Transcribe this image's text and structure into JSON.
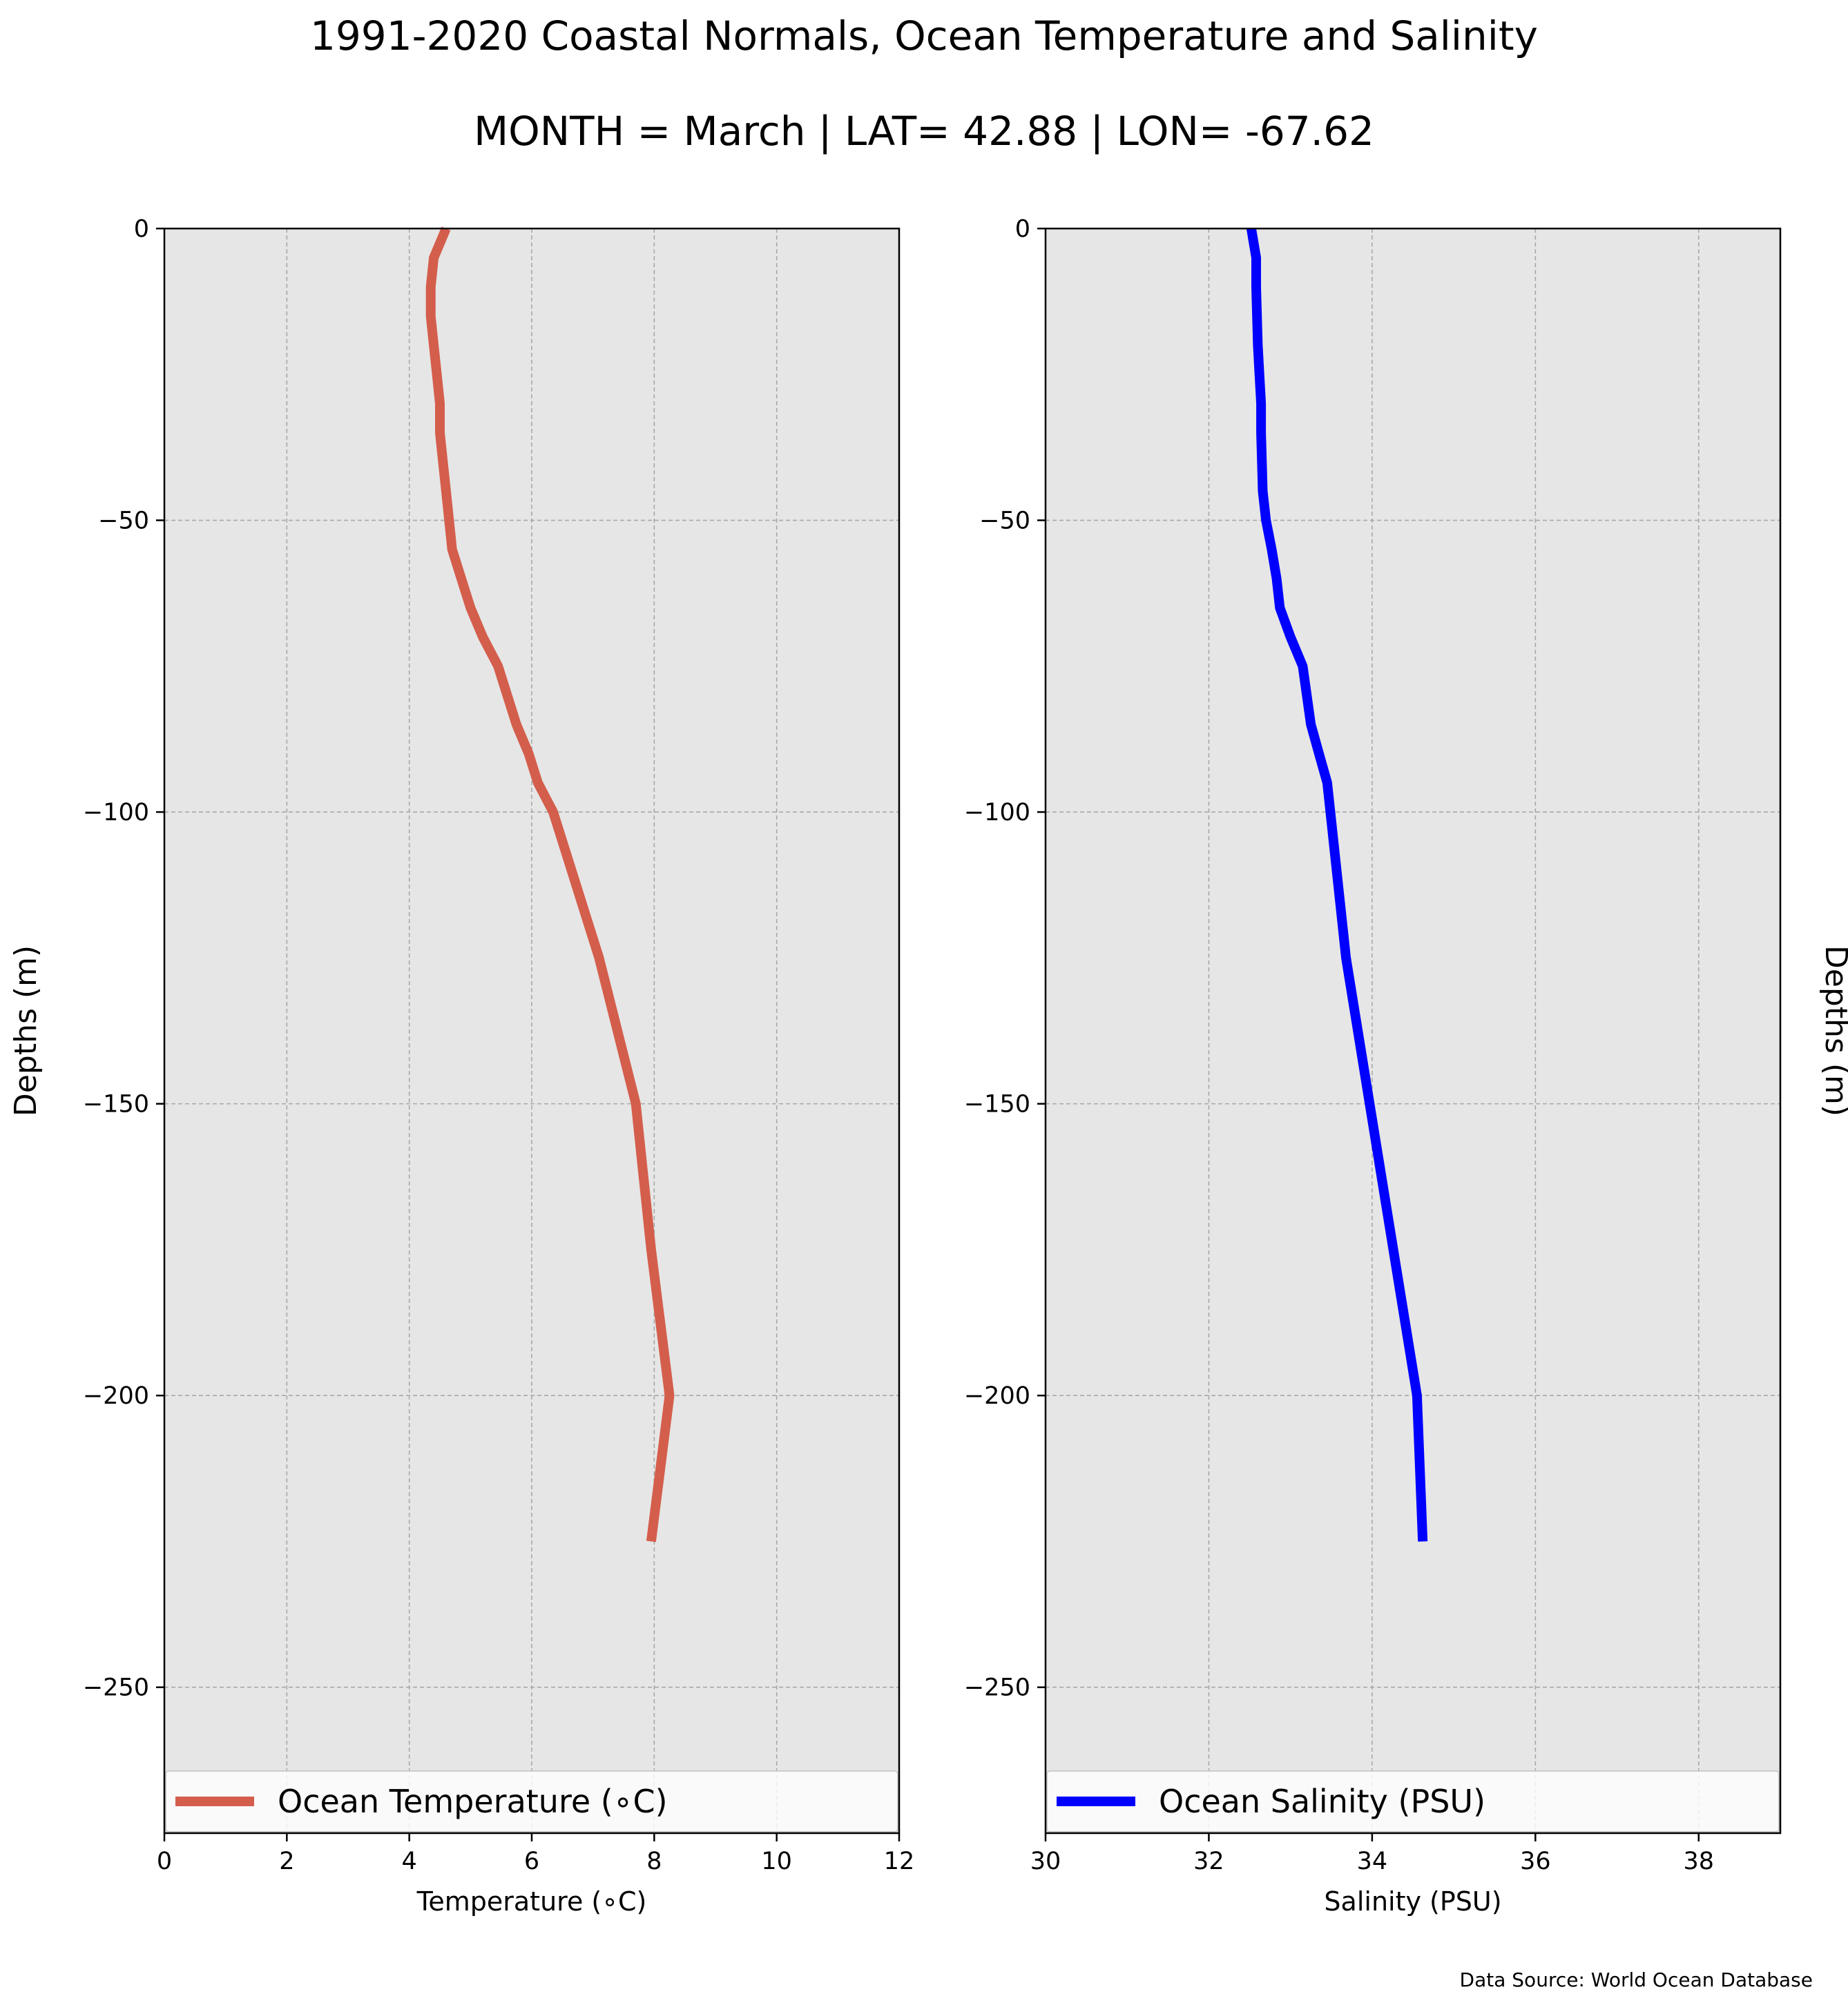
{
  "title": "1991-2020 Coastal Normals, Ocean Temperature and Salinity",
  "subtitle": "MONTH = March | LAT= 42.88 | LON= -67.62",
  "footer": "Data Source: World Ocean Database",
  "chart_data": [
    {
      "type": "line",
      "orientation": "profile",
      "xlabel": "Temperature (∘C)",
      "ylabel": "Depths (m)",
      "xlim": [
        0,
        12
      ],
      "ylim": [
        -275,
        0
      ],
      "xticks": [
        0,
        2,
        4,
        6,
        8,
        10,
        12
      ],
      "yticks": [
        0,
        -50,
        -100,
        -150,
        -200,
        -250
      ],
      "ytick_labels": [
        "0",
        "−50",
        "−100",
        "−150",
        "−200",
        "−250"
      ],
      "grid": true,
      "background": "#e6e6e6",
      "legend_position": "bottom",
      "series": [
        {
          "name": "Ocean Temperature (∘C)",
          "color": "#d45e4c",
          "x": [
            4.6,
            4.4,
            4.35,
            4.35,
            4.4,
            4.45,
            4.5,
            4.5,
            4.55,
            4.6,
            4.7,
            4.85,
            5.0,
            5.2,
            5.45,
            5.6,
            5.75,
            5.95,
            6.1,
            6.35,
            7.1,
            7.7,
            7.95,
            8.25,
            7.95
          ],
          "y": [
            0,
            -5,
            -10,
            -15,
            -20,
            -25,
            -30,
            -35,
            -40,
            -45,
            -55,
            -60,
            -65,
            -70,
            -75,
            -80,
            -85,
            -90,
            -95,
            -100,
            -125,
            -150,
            -175,
            -200,
            -225
          ]
        }
      ]
    },
    {
      "type": "line",
      "orientation": "profile",
      "xlabel": "Salinity (PSU)",
      "ylabel": "Depths (m)",
      "xlim": [
        30,
        39
      ],
      "ylim": [
        -275,
        0
      ],
      "xticks": [
        30,
        32,
        34,
        36,
        38
      ],
      "yticks": [
        0,
        -50,
        -100,
        -150,
        -200,
        -250
      ],
      "ytick_labels": [
        "0",
        "−50",
        "−100",
        "−150",
        "−200",
        "−250"
      ],
      "grid": true,
      "background": "#e6e6e6",
      "legend_position": "bottom",
      "series": [
        {
          "name": "Ocean Salinity (PSU)",
          "color": "#0000ff",
          "x": [
            32.52,
            32.58,
            32.58,
            32.59,
            32.6,
            32.62,
            32.64,
            32.64,
            32.65,
            32.66,
            32.7,
            32.77,
            32.83,
            32.87,
            33.0,
            33.15,
            33.2,
            33.25,
            33.35,
            33.45,
            33.68,
            33.97,
            34.26,
            34.55,
            34.62
          ],
          "y": [
            0,
            -5,
            -10,
            -15,
            -20,
            -25,
            -30,
            -35,
            -40,
            -45,
            -50,
            -55,
            -60,
            -65,
            -70,
            -75,
            -80,
            -85,
            -90,
            -95,
            -125,
            -150,
            -175,
            -200,
            -225
          ]
        }
      ]
    }
  ]
}
